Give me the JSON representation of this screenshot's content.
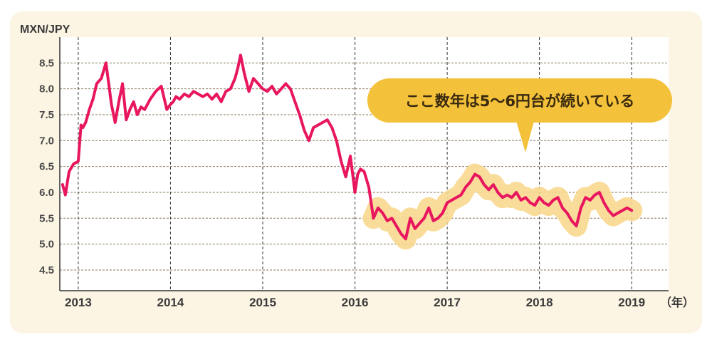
{
  "chart_data": {
    "type": "line",
    "title": "",
    "ylabel": "MXN/JPY",
    "xunit": "（年）",
    "x_ticks": [
      "2013",
      "2014",
      "2015",
      "2016",
      "2017",
      "2018",
      "2019"
    ],
    "y_ticks": [
      "4.5",
      "5.0",
      "5.5",
      "6.0",
      "6.5",
      "7.0",
      "7.5",
      "8.0",
      "8.5"
    ],
    "ylim": [
      4.1,
      9.0
    ],
    "xlim": [
      2012.8,
      2019.4
    ],
    "grid": true,
    "annotation": "ここ数年は5～6円台が続いている",
    "colors": {
      "line": "#e8165e",
      "highlight": "#f9d88f",
      "callout": "#f3c13a",
      "background": "#fdf5e4"
    },
    "series": [
      {
        "x": [
          2012.83,
          2012.86,
          2012.9,
          2012.95,
          2013.0,
          2013.03,
          2013.05,
          2013.08,
          2013.12,
          2013.16,
          2013.2,
          2013.25,
          2013.3,
          2013.33,
          2013.36,
          2013.4,
          2013.44,
          2013.48,
          2013.52,
          2013.56,
          2013.6,
          2013.64,
          2013.68,
          2013.72,
          2013.78,
          2013.84,
          2013.9,
          2013.96,
          2014.0,
          2014.03,
          2014.06,
          2014.1,
          2014.15,
          2014.2,
          2014.25,
          2014.3,
          2014.35,
          2014.4,
          2014.45,
          2014.5,
          2014.55,
          2014.6,
          2014.65,
          2014.7,
          2014.73,
          2014.76,
          2014.8,
          2014.85,
          2014.9,
          2014.95,
          2015.0,
          2015.05,
          2015.1,
          2015.15,
          2015.2,
          2015.25,
          2015.3,
          2015.35,
          2015.4,
          2015.45,
          2015.5,
          2015.55,
          2015.6,
          2015.65,
          2015.7,
          2015.75,
          2015.8,
          2015.85,
          2015.9,
          2015.95,
          2016.0,
          2016.03,
          2016.06,
          2016.1,
          2016.15,
          2016.2,
          2016.25,
          2016.3,
          2016.35,
          2016.4,
          2016.45,
          2016.5,
          2016.55,
          2016.6,
          2016.65,
          2016.7,
          2016.75,
          2016.8,
          2016.85,
          2016.9,
          2016.95,
          2017.0,
          2017.05,
          2017.1,
          2017.15,
          2017.2,
          2017.25,
          2017.3,
          2017.35,
          2017.4,
          2017.45,
          2017.5,
          2017.55,
          2017.6,
          2017.65,
          2017.7,
          2017.75,
          2017.8,
          2017.85,
          2017.9,
          2017.95,
          2018.0,
          2018.05,
          2018.1,
          2018.15,
          2018.2,
          2018.25,
          2018.3,
          2018.35,
          2018.4,
          2018.45,
          2018.5,
          2018.55,
          2018.6,
          2018.65,
          2018.7,
          2018.75,
          2018.8,
          2018.85,
          2018.9,
          2018.95,
          2019.0
        ],
        "values": [
          6.15,
          5.95,
          6.4,
          6.55,
          6.6,
          7.3,
          7.25,
          7.35,
          7.6,
          7.8,
          8.1,
          8.2,
          8.5,
          8.1,
          7.7,
          7.35,
          7.75,
          8.1,
          7.4,
          7.6,
          7.75,
          7.5,
          7.65,
          7.6,
          7.8,
          7.95,
          8.05,
          7.6,
          7.7,
          7.75,
          7.85,
          7.8,
          7.9,
          7.85,
          7.95,
          7.9,
          7.85,
          7.9,
          7.8,
          7.9,
          7.75,
          7.95,
          8.0,
          8.2,
          8.4,
          8.65,
          8.3,
          7.95,
          8.2,
          8.1,
          8.0,
          7.95,
          8.05,
          7.9,
          8.0,
          8.1,
          8.0,
          7.75,
          7.5,
          7.2,
          7.0,
          7.25,
          7.3,
          7.35,
          7.4,
          7.25,
          7.0,
          6.6,
          6.3,
          6.7,
          6.0,
          6.35,
          6.45,
          6.4,
          6.1,
          5.5,
          5.7,
          5.6,
          5.45,
          5.5,
          5.35,
          5.2,
          5.1,
          5.5,
          5.3,
          5.4,
          5.5,
          5.7,
          5.45,
          5.5,
          5.6,
          5.8,
          5.85,
          5.9,
          5.95,
          6.1,
          6.2,
          6.35,
          6.3,
          6.15,
          6.05,
          6.15,
          6.0,
          5.9,
          5.95,
          5.9,
          6.0,
          5.85,
          5.9,
          5.8,
          5.75,
          5.9,
          5.8,
          5.75,
          5.85,
          5.9,
          5.7,
          5.6,
          5.45,
          5.35,
          5.7,
          5.9,
          5.85,
          5.95,
          6.0,
          5.8,
          5.65,
          5.55,
          5.6,
          5.65,
          5.7,
          5.65
        ]
      }
    ]
  }
}
